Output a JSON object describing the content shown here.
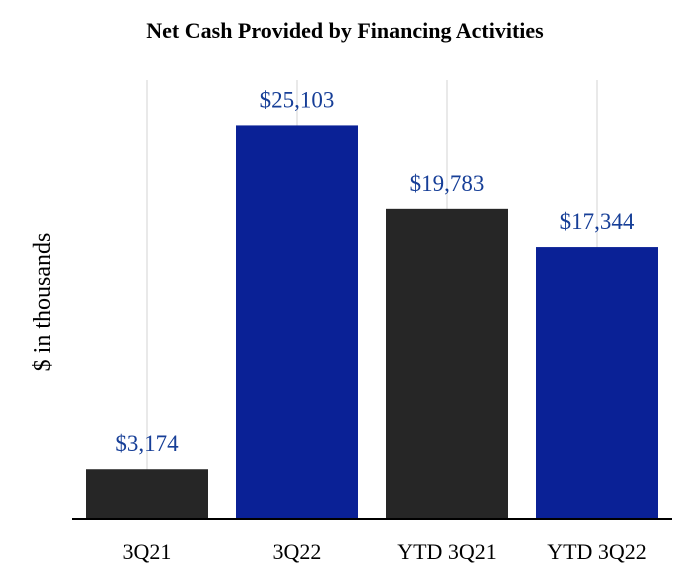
{
  "chart_data": {
    "type": "bar",
    "title": "Net Cash Provided by Financing Activities",
    "xlabel": "",
    "ylabel": "$ in thousands",
    "categories": [
      "3Q21",
      "3Q22",
      "YTD 3Q21",
      "YTD 3Q22"
    ],
    "values": [
      3174,
      25103,
      19783,
      17344
    ],
    "value_labels": [
      "$3,174",
      "$25,103",
      "$19,783",
      "$17,344"
    ],
    "bar_colors": [
      "#262626",
      "#0a2196",
      "#262626",
      "#0a2196"
    ],
    "label_color": "#163e97",
    "ylim": [
      0,
      28000
    ],
    "grid": true,
    "grid_axis": "x",
    "legend": "none"
  }
}
